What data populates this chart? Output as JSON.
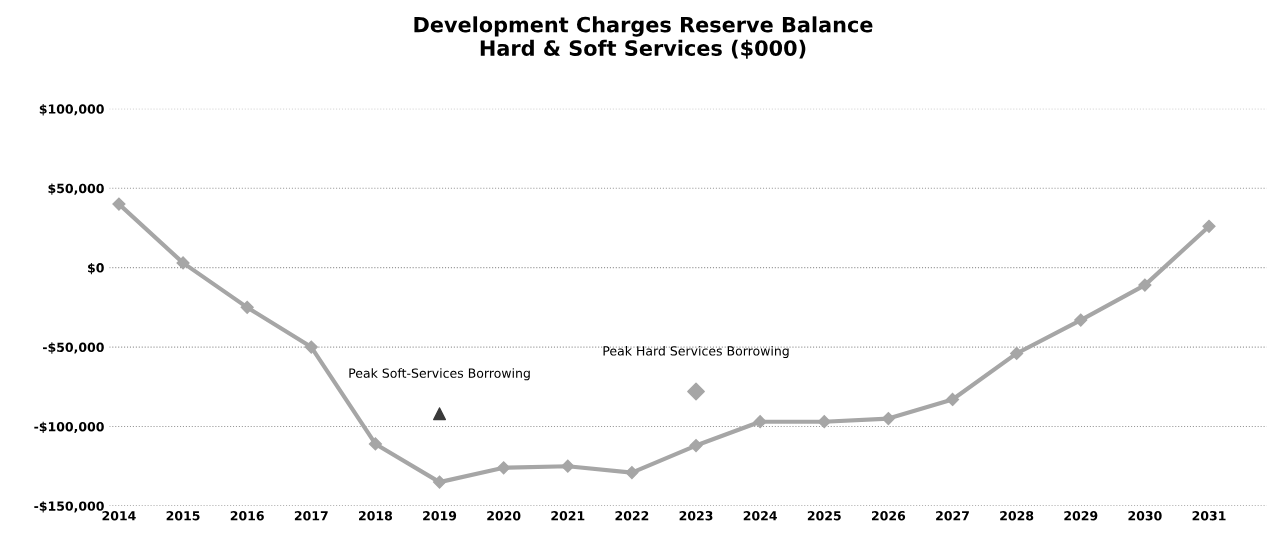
{
  "chart_data": {
    "type": "line",
    "title": "Development Charges Reserve Balance\nHard & Soft Services ($000)",
    "categories": [
      "2014",
      "2015",
      "2016",
      "2017",
      "2018",
      "2019",
      "2020",
      "2021",
      "2022",
      "2023",
      "2024",
      "2025",
      "2026",
      "2027",
      "2028",
      "2029",
      "2030",
      "2031"
    ],
    "series": [
      {
        "color": "#a6a6a6",
        "marker": "diamond",
        "values": [
          40000,
          3000,
          -25000,
          -50000,
          -111000,
          -135000,
          -126000,
          -125000,
          -129000,
          -112000,
          -97000,
          -97000,
          -95000,
          -83000,
          -54000,
          -33000,
          -11000,
          26000
        ]
      },
      {
        "type": "scatter",
        "color": "#3a3a3a",
        "marker": "triangle",
        "values": [
          null,
          null,
          null,
          null,
          null,
          -92000,
          null,
          null,
          null,
          null,
          null,
          null,
          null,
          null,
          null,
          null,
          null,
          null
        ]
      },
      {
        "type": "scatter",
        "color": "#a6a6a6",
        "marker": "diamond",
        "values": [
          null,
          null,
          null,
          null,
          null,
          null,
          null,
          null,
          null,
          -78000,
          null,
          null,
          null,
          null,
          null,
          null,
          null,
          null
        ]
      }
    ],
    "ylim": [
      -150000,
      100000
    ],
    "yticks": [
      {
        "value": -150000,
        "label": "-$150,000"
      },
      {
        "value": -100000,
        "label": "-$100,000"
      },
      {
        "value": -50000,
        "label": "-$50,000"
      },
      {
        "value": 0,
        "label": "$0"
      },
      {
        "value": 50000,
        "label": "$50,000"
      },
      {
        "value": 100000,
        "label": "$100,000"
      }
    ],
    "grid": "y",
    "annotations": [
      {
        "text": "Peak Soft-Services Borrowing",
        "x": "2019",
        "y": -92000
      },
      {
        "text": "Peak Hard Services Borrowing",
        "x": "2023",
        "y": -78000
      }
    ]
  }
}
